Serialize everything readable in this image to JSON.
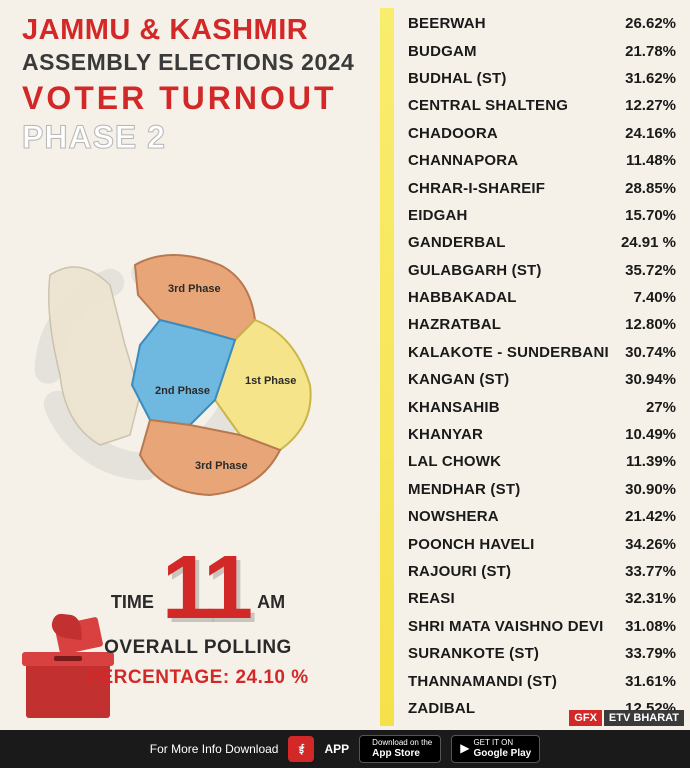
{
  "header": {
    "line1": "JAMMU & KASHMIR",
    "line2": "ASSEMBLY ELECTIONS 2024",
    "line3": "VOTER  TURNOUT",
    "line4": "PHASE 2"
  },
  "map": {
    "phase1_label": "1st Phase",
    "phase2_label": "2nd Phase",
    "phase3_label": "3rd Phase",
    "colors": {
      "phase1": "#f5e48a",
      "phase2": "#6fb8e0",
      "phase3": "#e8a678",
      "outline": "#9a9a9a",
      "background_region": "#ede4d0"
    }
  },
  "time_block": {
    "time_label": "TIME",
    "time_value": "11",
    "am_label": "AM",
    "overall_label": "OVERALL POLLING",
    "percentage_label": "PERCENTAGE: 24.10 %"
  },
  "colors": {
    "accent_red": "#d32828",
    "text_dark": "#2a2a2a",
    "yellow_bar_top": "#f9ed6e",
    "yellow_bar_bottom": "#f5e14a",
    "page_bg": "#f5f1e8",
    "footer_bg": "#1a1a1a"
  },
  "constituencies": [
    {
      "name": "BEERWAH",
      "value": "26.62%"
    },
    {
      "name": "BUDGAM",
      "value": "21.78%"
    },
    {
      "name": "BUDHAL (ST)",
      "value": "31.62%"
    },
    {
      "name": "CENTRAL SHALTENG",
      "value": "12.27%"
    },
    {
      "name": "CHADOORA",
      "value": "24.16%"
    },
    {
      "name": "CHANNAPORA",
      "value": "11.48%"
    },
    {
      "name": "CHRAR-I-SHAREIF",
      "value": "28.85%"
    },
    {
      "name": "EIDGAH",
      "value": "15.70%"
    },
    {
      "name": "GANDERBAL",
      "value": "24.91 %"
    },
    {
      "name": "GULABGARH (ST)",
      "value": "35.72%"
    },
    {
      "name": "HABBAKADAL",
      "value": "7.40%"
    },
    {
      "name": "HAZRATBAL",
      "value": "12.80%"
    },
    {
      "name": "KALAKOTE - SUNDERBANI",
      "value": "30.74%"
    },
    {
      "name": "KANGAN (ST)",
      "value": "30.94%"
    },
    {
      "name": "KHANSAHIB",
      "value": "27%"
    },
    {
      "name": "KHANYAR",
      "value": "10.49%"
    },
    {
      "name": "LAL CHOWK",
      "value": "11.39%"
    },
    {
      "name": "MENDHAR (ST)",
      "value": "30.90%"
    },
    {
      "name": "NOWSHERA",
      "value": "21.42%"
    },
    {
      "name": "POONCH HAVELI",
      "value": "34.26%"
    },
    {
      "name": "RAJOURI (ST)",
      "value": "33.77%"
    },
    {
      "name": "REASI",
      "value": "32.31%"
    },
    {
      "name": "SHRI MATA VAISHNO DEVI",
      "value": "31.08%"
    },
    {
      "name": "SURANKOTE (ST)",
      "value": "33.79%"
    },
    {
      "name": "THANNAMANDI (ST)",
      "value": "31.61%"
    },
    {
      "name": "ZADIBAL",
      "value": "12.52%"
    }
  ],
  "footer": {
    "text": "For More Info Download",
    "app_label": "APP",
    "appstore_small": "Download on the",
    "appstore_big": "App Store",
    "play_small": "GET IT ON",
    "play_big": "Google Play"
  },
  "gfx": {
    "left": "GFX",
    "right": "ETV BHARAT"
  }
}
